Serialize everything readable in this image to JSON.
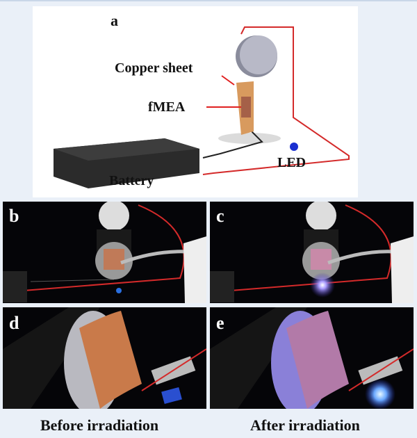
{
  "panel_a": {
    "label": "a",
    "labels": {
      "copper_sheet": "Copper sheet",
      "fmea": "fMEA",
      "led": "LED",
      "battery": "Battery"
    }
  },
  "photos": [
    {
      "label": "b"
    },
    {
      "label": "c"
    },
    {
      "label": "d"
    },
    {
      "label": "e"
    }
  ],
  "captions": {
    "left": "Before irradiation",
    "right": "After irradiation"
  },
  "colors": {
    "wire": "#d42a2a",
    "led": "#1a2fd0",
    "copper": "#c97a4a",
    "glow": "#b9a6ff"
  }
}
